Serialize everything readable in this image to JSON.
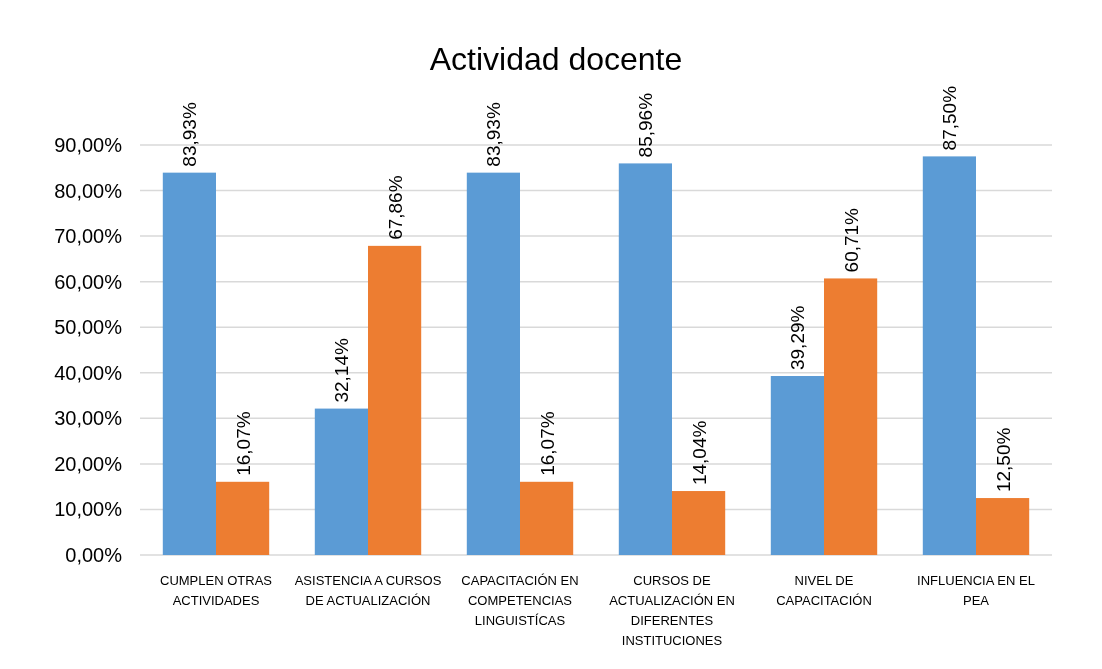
{
  "chart_data": {
    "type": "bar",
    "title": "Actividad docente",
    "categories": [
      "CUMPLEN OTRAS ACTIVIDADES",
      "ASISTENCIA A CURSOS DE ACTUALIZACIÓN",
      "CAPACITACIÓN EN COMPETENCIAS LINGUISTÍCAS",
      "CURSOS DE ACTUALIZACIÓN EN DIFERENTES INSTITUCIONES",
      "NIVEL DE CAPACITACIÓN",
      "INFLUENCIA EN EL PEA"
    ],
    "series": [
      {
        "color": "#5b9bd5",
        "values": [
          83.93,
          32.14,
          83.93,
          85.96,
          39.29,
          87.5
        ],
        "value_labels": [
          "83,93%",
          "32,14%",
          "83,93%",
          "85,96%",
          "39,29%",
          "87,50%"
        ]
      },
      {
        "color": "#ed7d31",
        "values": [
          16.07,
          67.86,
          16.07,
          14.04,
          60.71,
          12.5
        ],
        "value_labels": [
          "16,07%",
          "67,86%",
          "16,07%",
          "14,04%",
          "60,71%",
          "12,50%"
        ]
      }
    ],
    "ylim": [
      0,
      90
    ],
    "yticks": [
      {
        "value": 0,
        "label": "0,00%"
      },
      {
        "value": 10,
        "label": "10,00%"
      },
      {
        "value": 20,
        "label": "20,00%"
      },
      {
        "value": 30,
        "label": "30,00%"
      },
      {
        "value": 40,
        "label": "40,00%"
      },
      {
        "value": 50,
        "label": "50,00%"
      },
      {
        "value": 60,
        "label": "60,00%"
      },
      {
        "value": 70,
        "label": "70,00%"
      },
      {
        "value": 80,
        "label": "80,00%"
      },
      {
        "value": 90,
        "label": "90,00%"
      }
    ],
    "grid": "y"
  }
}
